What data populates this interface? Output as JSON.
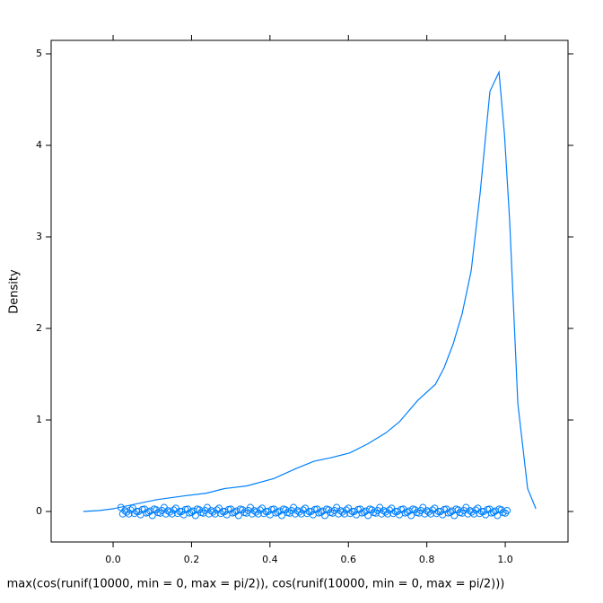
{
  "chart_data": {
    "type": "density",
    "xlabel": "max(cos(runif(10000, min = 0, max = pi/2)), cos(runif(10000,  min = 0, max = pi/2)))",
    "ylabel": "Density",
    "color": "#0080ff",
    "xlim": [
      -0.158,
      1.16
    ],
    "ylim": [
      -0.333,
      5.147
    ],
    "xticks": [
      {
        "value": 0,
        "label": "0.0"
      },
      0.2,
      0.4,
      0.6,
      0.8,
      {
        "value": 1,
        "label": "1.0"
      }
    ],
    "yticks": [
      0,
      1,
      2,
      3,
      4,
      5
    ],
    "x": [
      -0.076,
      -0.037,
      0,
      0.055,
      0.112,
      0.18,
      0.238,
      0.284,
      0.341,
      0.41,
      0.467,
      0.513,
      0.558,
      0.604,
      0.65,
      0.696,
      0.73,
      0.776,
      0.822,
      0.844,
      0.867,
      0.89,
      0.913,
      0.936,
      0.961,
      0.984,
      0.998,
      1.011,
      1.032,
      1.057,
      1.078
    ],
    "values": [
      0,
      0.01,
      0.03,
      0.08,
      0.13,
      0.17,
      0.2,
      0.25,
      0.28,
      0.36,
      0.47,
      0.55,
      0.59,
      0.64,
      0.74,
      0.86,
      0.98,
      1.21,
      1.39,
      1.57,
      1.83,
      2.16,
      2.63,
      3.48,
      4.59,
      4.8,
      4.12,
      3.19,
      1.18,
      0.25,
      0.03
    ],
    "rug_x": [
      0.02,
      0.03,
      0.04,
      0.05,
      0.06,
      0.07,
      0.08,
      0.09,
      0.1,
      0.11,
      0.12,
      0.13,
      0.14,
      0.15,
      0.16,
      0.17,
      0.18,
      0.19,
      0.2,
      0.21,
      0.22,
      0.23,
      0.24,
      0.25,
      0.26,
      0.27,
      0.28,
      0.29,
      0.3,
      0.31,
      0.32,
      0.33,
      0.34,
      0.35,
      0.36,
      0.37,
      0.38,
      0.39,
      0.4,
      0.41,
      0.42,
      0.43,
      0.44,
      0.45,
      0.46,
      0.47,
      0.48,
      0.49,
      0.5,
      0.51,
      0.52,
      0.53,
      0.54,
      0.55,
      0.56,
      0.57,
      0.58,
      0.59,
      0.6,
      0.61,
      0.62,
      0.63,
      0.64,
      0.65,
      0.66,
      0.67,
      0.68,
      0.69,
      0.7,
      0.71,
      0.72,
      0.73,
      0.74,
      0.75,
      0.76,
      0.77,
      0.78,
      0.79,
      0.8,
      0.81,
      0.82,
      0.83,
      0.84,
      0.85,
      0.86,
      0.87,
      0.88,
      0.89,
      0.9,
      0.91,
      0.92,
      0.93,
      0.94,
      0.95,
      0.96,
      0.97,
      0.98,
      0.99,
      1.0
    ]
  }
}
